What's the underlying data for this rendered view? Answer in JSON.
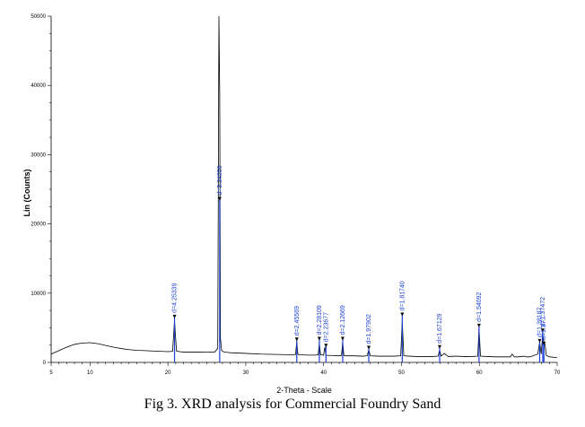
{
  "caption": "Fig 3. XRD analysis for Commercial Foundry Sand",
  "chart_data": {
    "type": "line",
    "title": "",
    "xlabel": "2-Theta - Scale",
    "ylabel": "Lin (Counts)",
    "xlim": [
      5,
      70
    ],
    "ylim": [
      0,
      50000
    ],
    "xticks": [
      5,
      10,
      20,
      30,
      40,
      50,
      60,
      70
    ],
    "yticks": [
      0,
      10000,
      20000,
      30000,
      40000,
      50000
    ],
    "colors": {
      "pattern": "#000000",
      "markers": "#1a3fd6"
    },
    "series": [
      {
        "type": "profile",
        "x": [
          5,
          6,
          7,
          8,
          9,
          10,
          11,
          12,
          13,
          14,
          15,
          16,
          17,
          18,
          19,
          20,
          20.6,
          20.85,
          21.1,
          21.5,
          22,
          23,
          24,
          25,
          26,
          26.4,
          26.55,
          26.65,
          26.75,
          26.9,
          27.2,
          28,
          29,
          30,
          32,
          34,
          36,
          36.4,
          36.55,
          36.7,
          37,
          38,
          39,
          39.3,
          39.45,
          39.6,
          40,
          40.15,
          40.3,
          40.5,
          41,
          42,
          42.3,
          42.45,
          42.6,
          43,
          44,
          45,
          45.6,
          45.8,
          46,
          47,
          48,
          49,
          49.9,
          50.1,
          50.3,
          51,
          52,
          53,
          54,
          54.7,
          54.9,
          55.1,
          55.5,
          56,
          57,
          58,
          59,
          59.8,
          59.96,
          60.15,
          61,
          62,
          63,
          64,
          64.2,
          64.5,
          65,
          65.8,
          66,
          66.5,
          67,
          67.5,
          67.75,
          67.95,
          68.1,
          68.15,
          68.3,
          68.45,
          68.6,
          69,
          70
        ],
        "y": [
          1200,
          1700,
          2200,
          2600,
          2800,
          2850,
          2700,
          2450,
          2200,
          2000,
          1850,
          1750,
          1700,
          1650,
          1600,
          1550,
          1600,
          6000,
          1650,
          1550,
          1500,
          1500,
          1480,
          1470,
          1500,
          2000,
          50000,
          39000,
          3500,
          1700,
          1500,
          1400,
          1350,
          1300,
          1200,
          1150,
          1100,
          1150,
          3000,
          1150,
          1100,
          1050,
          1050,
          1100,
          2800,
          1100,
          1050,
          2200,
          1050,
          1000,
          1000,
          950,
          1000,
          3000,
          1000,
          950,
          950,
          900,
          950,
          1800,
          950,
          900,
          900,
          900,
          950,
          6000,
          950,
          900,
          850,
          850,
          850,
          900,
          1800,
          900,
          1300,
          850,
          900,
          850,
          850,
          900,
          5000,
          900,
          850,
          800,
          800,
          800,
          1200,
          800,
          800,
          900,
          800,
          800,
          1000,
          1200,
          2900,
          1200,
          3500,
          4000,
          3000,
          2500,
          1000,
          800,
          700
        ]
      }
    ],
    "peaks": [
      {
        "label": "d=4.25339",
        "x": 20.85,
        "y": 6500
      },
      {
        "label": "d=3.34259",
        "x": 26.65,
        "y": 23500
      },
      {
        "label": "d=2.45569",
        "x": 36.55,
        "y": 3200
      },
      {
        "label": "d=2.28109",
        "x": 39.45,
        "y": 3300
      },
      {
        "label": "d=2.23677",
        "x": 40.3,
        "y": 2300
      },
      {
        "label": "d=2.12669",
        "x": 42.45,
        "y": 3300
      },
      {
        "label": "d=1.97902",
        "x": 45.8,
        "y": 2000
      },
      {
        "label": "d=1.81740",
        "x": 50.1,
        "y": 6800
      },
      {
        "label": "d=1.67129",
        "x": 54.9,
        "y": 2100
      },
      {
        "label": "d=1.54092",
        "x": 59.96,
        "y": 5200
      },
      {
        "label": "d=1.38187",
        "x": 67.75,
        "y": 3000
      },
      {
        "label": "d=1.37472",
        "x": 68.15,
        "y": 4500
      },
      {
        "label": "d=1.37...",
        "x": 68.3,
        "y": 2600
      }
    ]
  }
}
